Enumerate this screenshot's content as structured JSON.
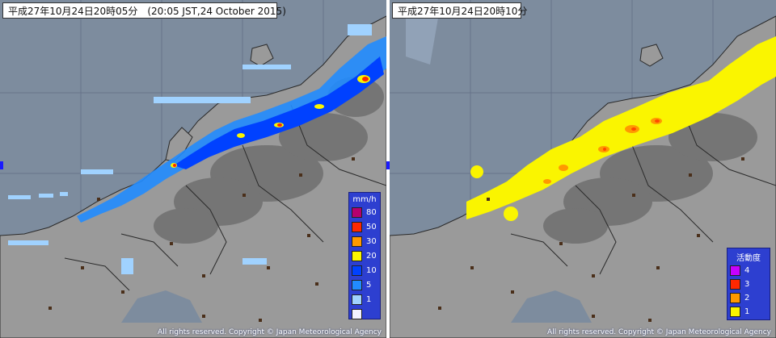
{
  "left_panel": {
    "title": "平成27年10月24日20時05分　(20:05 JST,24 October 2015)",
    "copyright": "All rights reserved. Copyright © Japan Meteorological Agency",
    "legend": {
      "title": "mm/h",
      "items": [
        {
          "label": "80",
          "color": "#b4006e"
        },
        {
          "label": "50",
          "color": "#ff2800"
        },
        {
          "label": "30",
          "color": "#ff9900"
        },
        {
          "label": "20",
          "color": "#faf500"
        },
        {
          "label": "10",
          "color": "#0041ff"
        },
        {
          "label": "5",
          "color": "#218cff"
        },
        {
          "label": "1",
          "color": "#a0d2ff"
        },
        {
          "label": "",
          "color": "#f2f2ff"
        }
      ]
    }
  },
  "right_panel": {
    "title": "平成27年10月24日20時10分",
    "copyright": "All rights reserved. Copyright © Japan Meteorological Agency",
    "legend": {
      "title": "活動度",
      "items": [
        {
          "label": "4",
          "color": "#c800ff"
        },
        {
          "label": "3",
          "color": "#ff2800"
        },
        {
          "label": "2",
          "color": "#ff9900"
        },
        {
          "label": "1",
          "color": "#faf500"
        }
      ]
    }
  },
  "colors": {
    "sea": "#7d8c9e",
    "land": "#9a9a9a",
    "mountain": "#6c6c6c",
    "border": "#2a2a2a",
    "grid": "#5f6c80"
  }
}
